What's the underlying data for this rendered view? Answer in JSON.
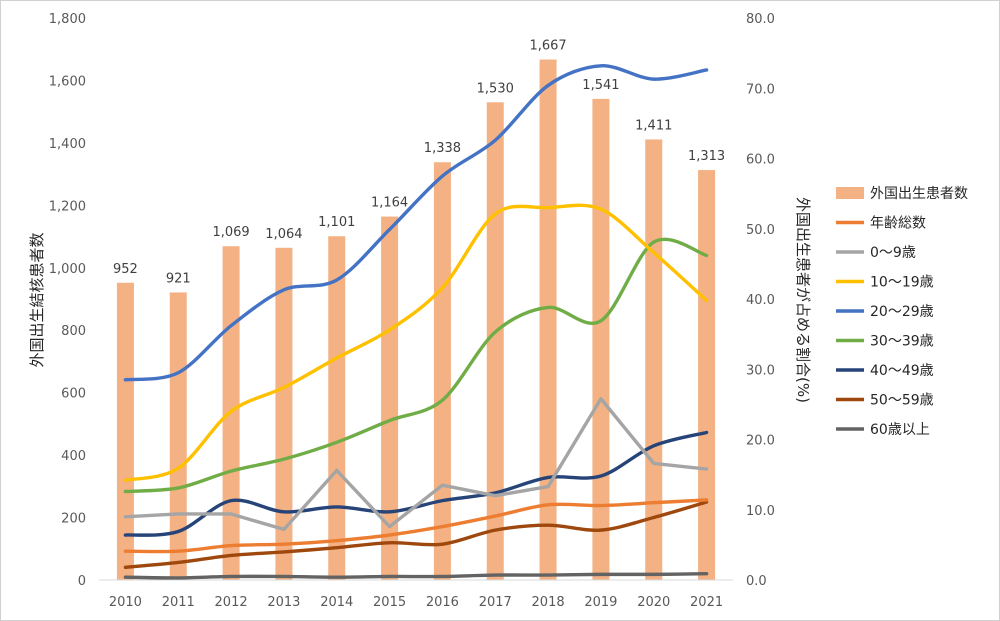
{
  "chart_data": {
    "type": "bar+line",
    "categories": [
      "2010",
      "2011",
      "2012",
      "2013",
      "2014",
      "2015",
      "2016",
      "2017",
      "2018",
      "2019",
      "2020",
      "2021"
    ],
    "left_axis": {
      "label": "外国出生結核患者数",
      "range": [
        0,
        1800
      ],
      "ticks": [
        "0",
        "200",
        "400",
        "600",
        "800",
        "1,000",
        "1,200",
        "1,400",
        "1,600",
        "1,800"
      ]
    },
    "right_axis": {
      "label": "外国出生患者が占める割合(%)",
      "range": [
        0,
        80
      ],
      "ticks": [
        "0.0",
        "10.0",
        "20.0",
        "30.0",
        "40.0",
        "50.0",
        "60.0",
        "70.0",
        "80.0"
      ]
    },
    "bar_series": {
      "name": "外国出生患者数",
      "color": "#f4b183",
      "values": [
        952,
        921,
        1069,
        1064,
        1101,
        1164,
        1338,
        1530,
        1667,
        1541,
        1411,
        1313
      ],
      "labels": [
        "952",
        "921",
        "1,069",
        "1,064",
        "1,101",
        "1,164",
        "1,338",
        "1,530",
        "1,667",
        "1,541",
        "1,411",
        "1,313"
      ]
    },
    "line_series": [
      {
        "name": "年齢総数",
        "color": "#ed7d31",
        "values": [
          4.1,
          4.1,
          4.9,
          5.1,
          5.6,
          6.4,
          7.6,
          9.1,
          10.7,
          10.6,
          11.0,
          11.4
        ]
      },
      {
        "name": "0〜9歳",
        "color": "#a5a5a5",
        "values": [
          9.0,
          9.4,
          9.4,
          7.2,
          15.6,
          7.6,
          13.5,
          12.0,
          13.3,
          25.8,
          16.6,
          15.8
        ]
      },
      {
        "name": "10〜19歳",
        "color": "#ffc000",
        "values": [
          14.2,
          15.9,
          24.0,
          27.4,
          31.6,
          35.6,
          41.6,
          52.1,
          53.0,
          52.8,
          46.6,
          39.8
        ]
      },
      {
        "name": "20〜29歳",
        "color": "#4472c4",
        "values": [
          28.5,
          29.5,
          36.2,
          41.3,
          42.7,
          49.9,
          57.5,
          62.6,
          70.4,
          73.2,
          71.3,
          72.6
        ]
      },
      {
        "name": "30〜39歳",
        "color": "#70ad47",
        "values": [
          12.6,
          13.1,
          15.5,
          17.2,
          19.6,
          22.7,
          25.6,
          35.3,
          38.8,
          36.9,
          48.1,
          46.2
        ]
      },
      {
        "name": "40〜49歳",
        "color": "#264478",
        "values": [
          6.4,
          6.9,
          11.3,
          9.7,
          10.4,
          9.7,
          11.3,
          12.4,
          14.6,
          14.8,
          19.1,
          21.0
        ]
      },
      {
        "name": "50〜59歳",
        "color": "#9e480e",
        "values": [
          1.8,
          2.5,
          3.5,
          4.0,
          4.6,
          5.3,
          5.1,
          7.1,
          7.8,
          7.1,
          8.9,
          11.1
        ]
      },
      {
        "name": "60歳以上",
        "color": "#636363",
        "values": [
          0.4,
          0.3,
          0.5,
          0.5,
          0.4,
          0.5,
          0.5,
          0.7,
          0.7,
          0.8,
          0.8,
          0.9
        ]
      }
    ],
    "legend_position": "right",
    "grid": false
  }
}
